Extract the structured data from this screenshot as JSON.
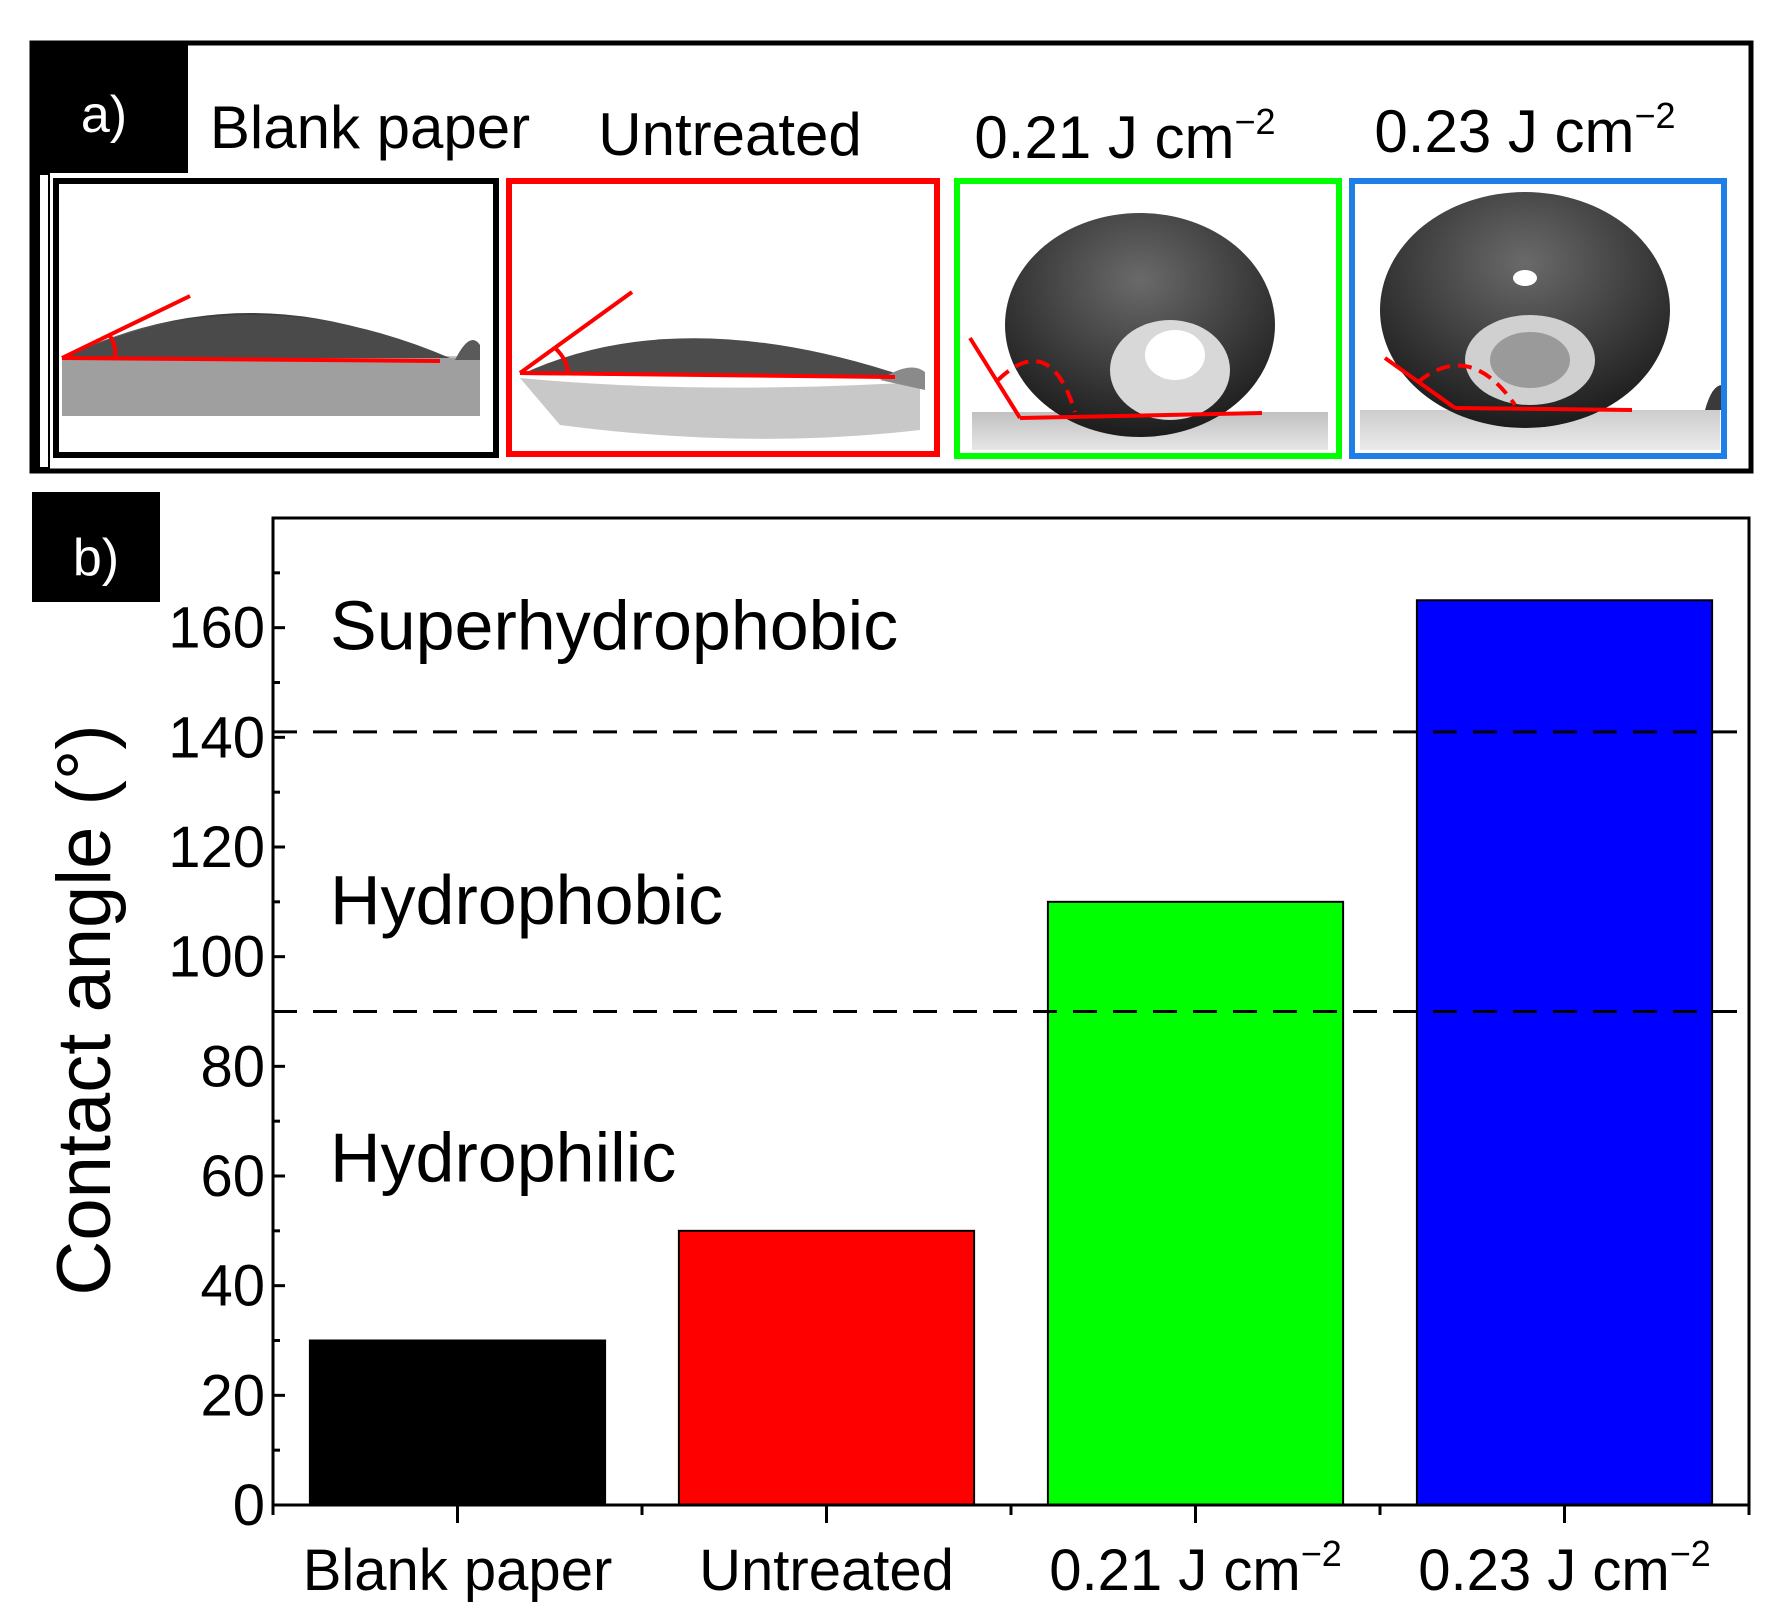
{
  "panel_a": {
    "label": "a)",
    "images": [
      {
        "caption": "Blank paper",
        "frame_color": "#000000",
        "kind": "flat"
      },
      {
        "caption": "Untreated",
        "frame_color": "#ff0000",
        "kind": "flat"
      },
      {
        "caption_main": "0.21 J cm",
        "caption_sup": "−2",
        "frame_color": "#00ff00",
        "kind": "bead"
      },
      {
        "caption_main": "0.23 J cm",
        "caption_sup": "−2",
        "frame_color": "#1e7fe6",
        "kind": "bead"
      }
    ]
  },
  "panel_b": {
    "label": "b)"
  },
  "chart_data": {
    "type": "bar",
    "ylabel": "Contact angle (°)",
    "ylim": [
      0,
      180
    ],
    "yticks": [
      0,
      20,
      40,
      60,
      80,
      100,
      120,
      140,
      160
    ],
    "categories": [
      {
        "main": "Blank paper",
        "sup": ""
      },
      {
        "main": "Untreated",
        "sup": ""
      },
      {
        "main": "0.21 J cm",
        "sup": "−2"
      },
      {
        "main": "0.23 J cm",
        "sup": "−2"
      }
    ],
    "values": [
      30,
      50,
      110,
      165
    ],
    "colors": [
      "#000000",
      "#ff0000",
      "#00ff00",
      "#0000ff"
    ],
    "thresholds": [
      {
        "value": 90,
        "style": "dashed"
      },
      {
        "value": 141,
        "style": "dashed"
      }
    ],
    "annotations": [
      {
        "text": "Superhydrophobic",
        "y": 160
      },
      {
        "text": "Hydrophobic",
        "y": 110
      },
      {
        "text": "Hydrophilic",
        "y": 63
      }
    ],
    "grid": false
  }
}
